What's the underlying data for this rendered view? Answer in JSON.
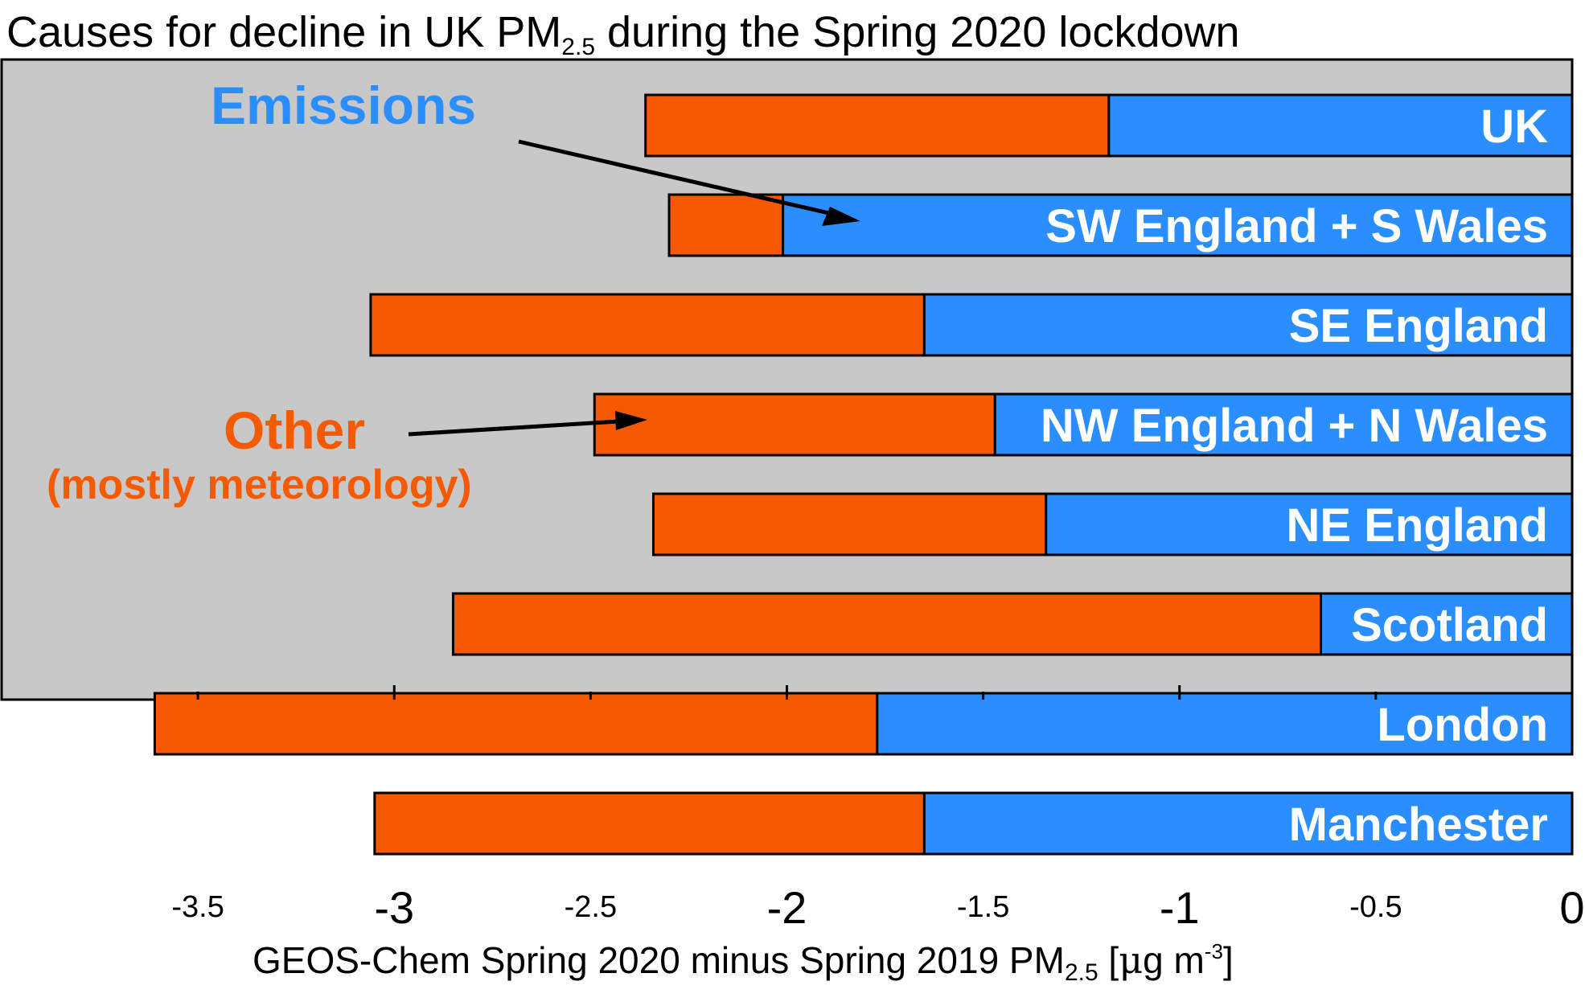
{
  "title": {
    "prefix": "Causes for decline in UK PM",
    "subscript": "2.5",
    "suffix": " during the Spring 2020 lockdown"
  },
  "chart_data": {
    "type": "bar",
    "orientation": "horizontal",
    "stacked": true,
    "xlim": [
      -4,
      0
    ],
    "grid": false,
    "background_color": "#c8c8c8",
    "categories": [
      "UK",
      "SW England + S Wales",
      "SE England",
      "NW England + N Wales",
      "NE England",
      "Scotland",
      "London",
      "Manchester"
    ],
    "series": [
      {
        "label_text": "Emissions",
        "color": "#2a8eff",
        "values": [
          -1.18,
          -2.01,
          -1.65,
          -1.47,
          -1.34,
          -0.64,
          -1.77,
          -1.65
        ]
      },
      {
        "label_text": "Other",
        "label_subtext": "(mostly meteorology)",
        "color": "#f55a00",
        "values": [
          -1.18,
          -0.29,
          -1.41,
          -1.02,
          -1.0,
          -2.21,
          -1.84,
          -1.4
        ]
      }
    ],
    "major_ticks": [
      {
        "value": -3,
        "label": "-3"
      },
      {
        "value": -2,
        "label": "-2"
      },
      {
        "value": -1,
        "label": "-1"
      },
      {
        "value": 0,
        "label": "0"
      }
    ],
    "minor_ticks": [
      {
        "value": -3.5,
        "label": "-3.5"
      },
      {
        "value": -2.5,
        "label": "-2.5"
      },
      {
        "value": -1.5,
        "label": "-1.5"
      },
      {
        "value": -0.5,
        "label": "-0.5"
      }
    ],
    "xlabel": {
      "prefix": "GEOS-Chem Spring 2020 minus Spring 2019 PM",
      "subscript": "2.5",
      "units_open": " [",
      "mu": "μ",
      "units_mid": "g m",
      "superscript": "-3",
      "units_close": "]"
    }
  }
}
